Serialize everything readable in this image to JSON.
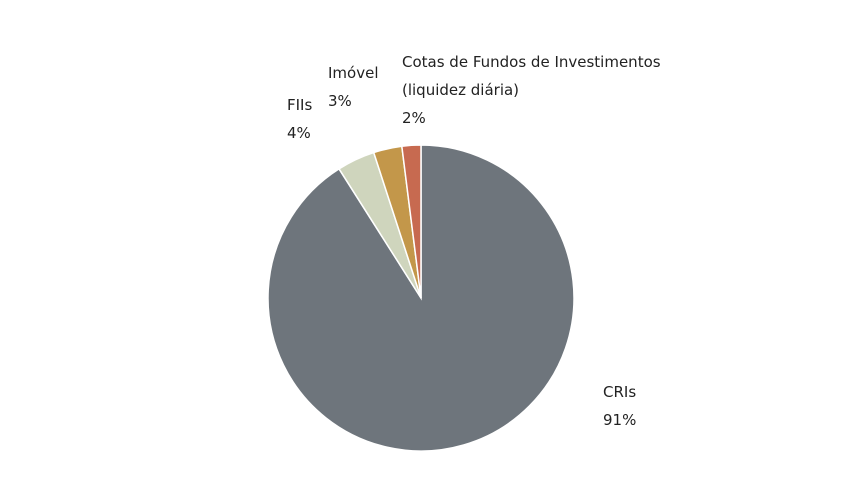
{
  "chart_data": {
    "type": "pie",
    "categories": [
      "CRIs",
      "FIIs",
      "Imóvel",
      "Cotas de Fundos de Investimentos (liquidez diária)"
    ],
    "values": [
      91,
      4,
      3,
      2
    ],
    "value_labels": [
      "91%",
      "4%",
      "3%",
      "2%"
    ],
    "colors": [
      "#6e757c",
      "#cfd5bd",
      "#c3974a",
      "#c76a50"
    ]
  }
}
